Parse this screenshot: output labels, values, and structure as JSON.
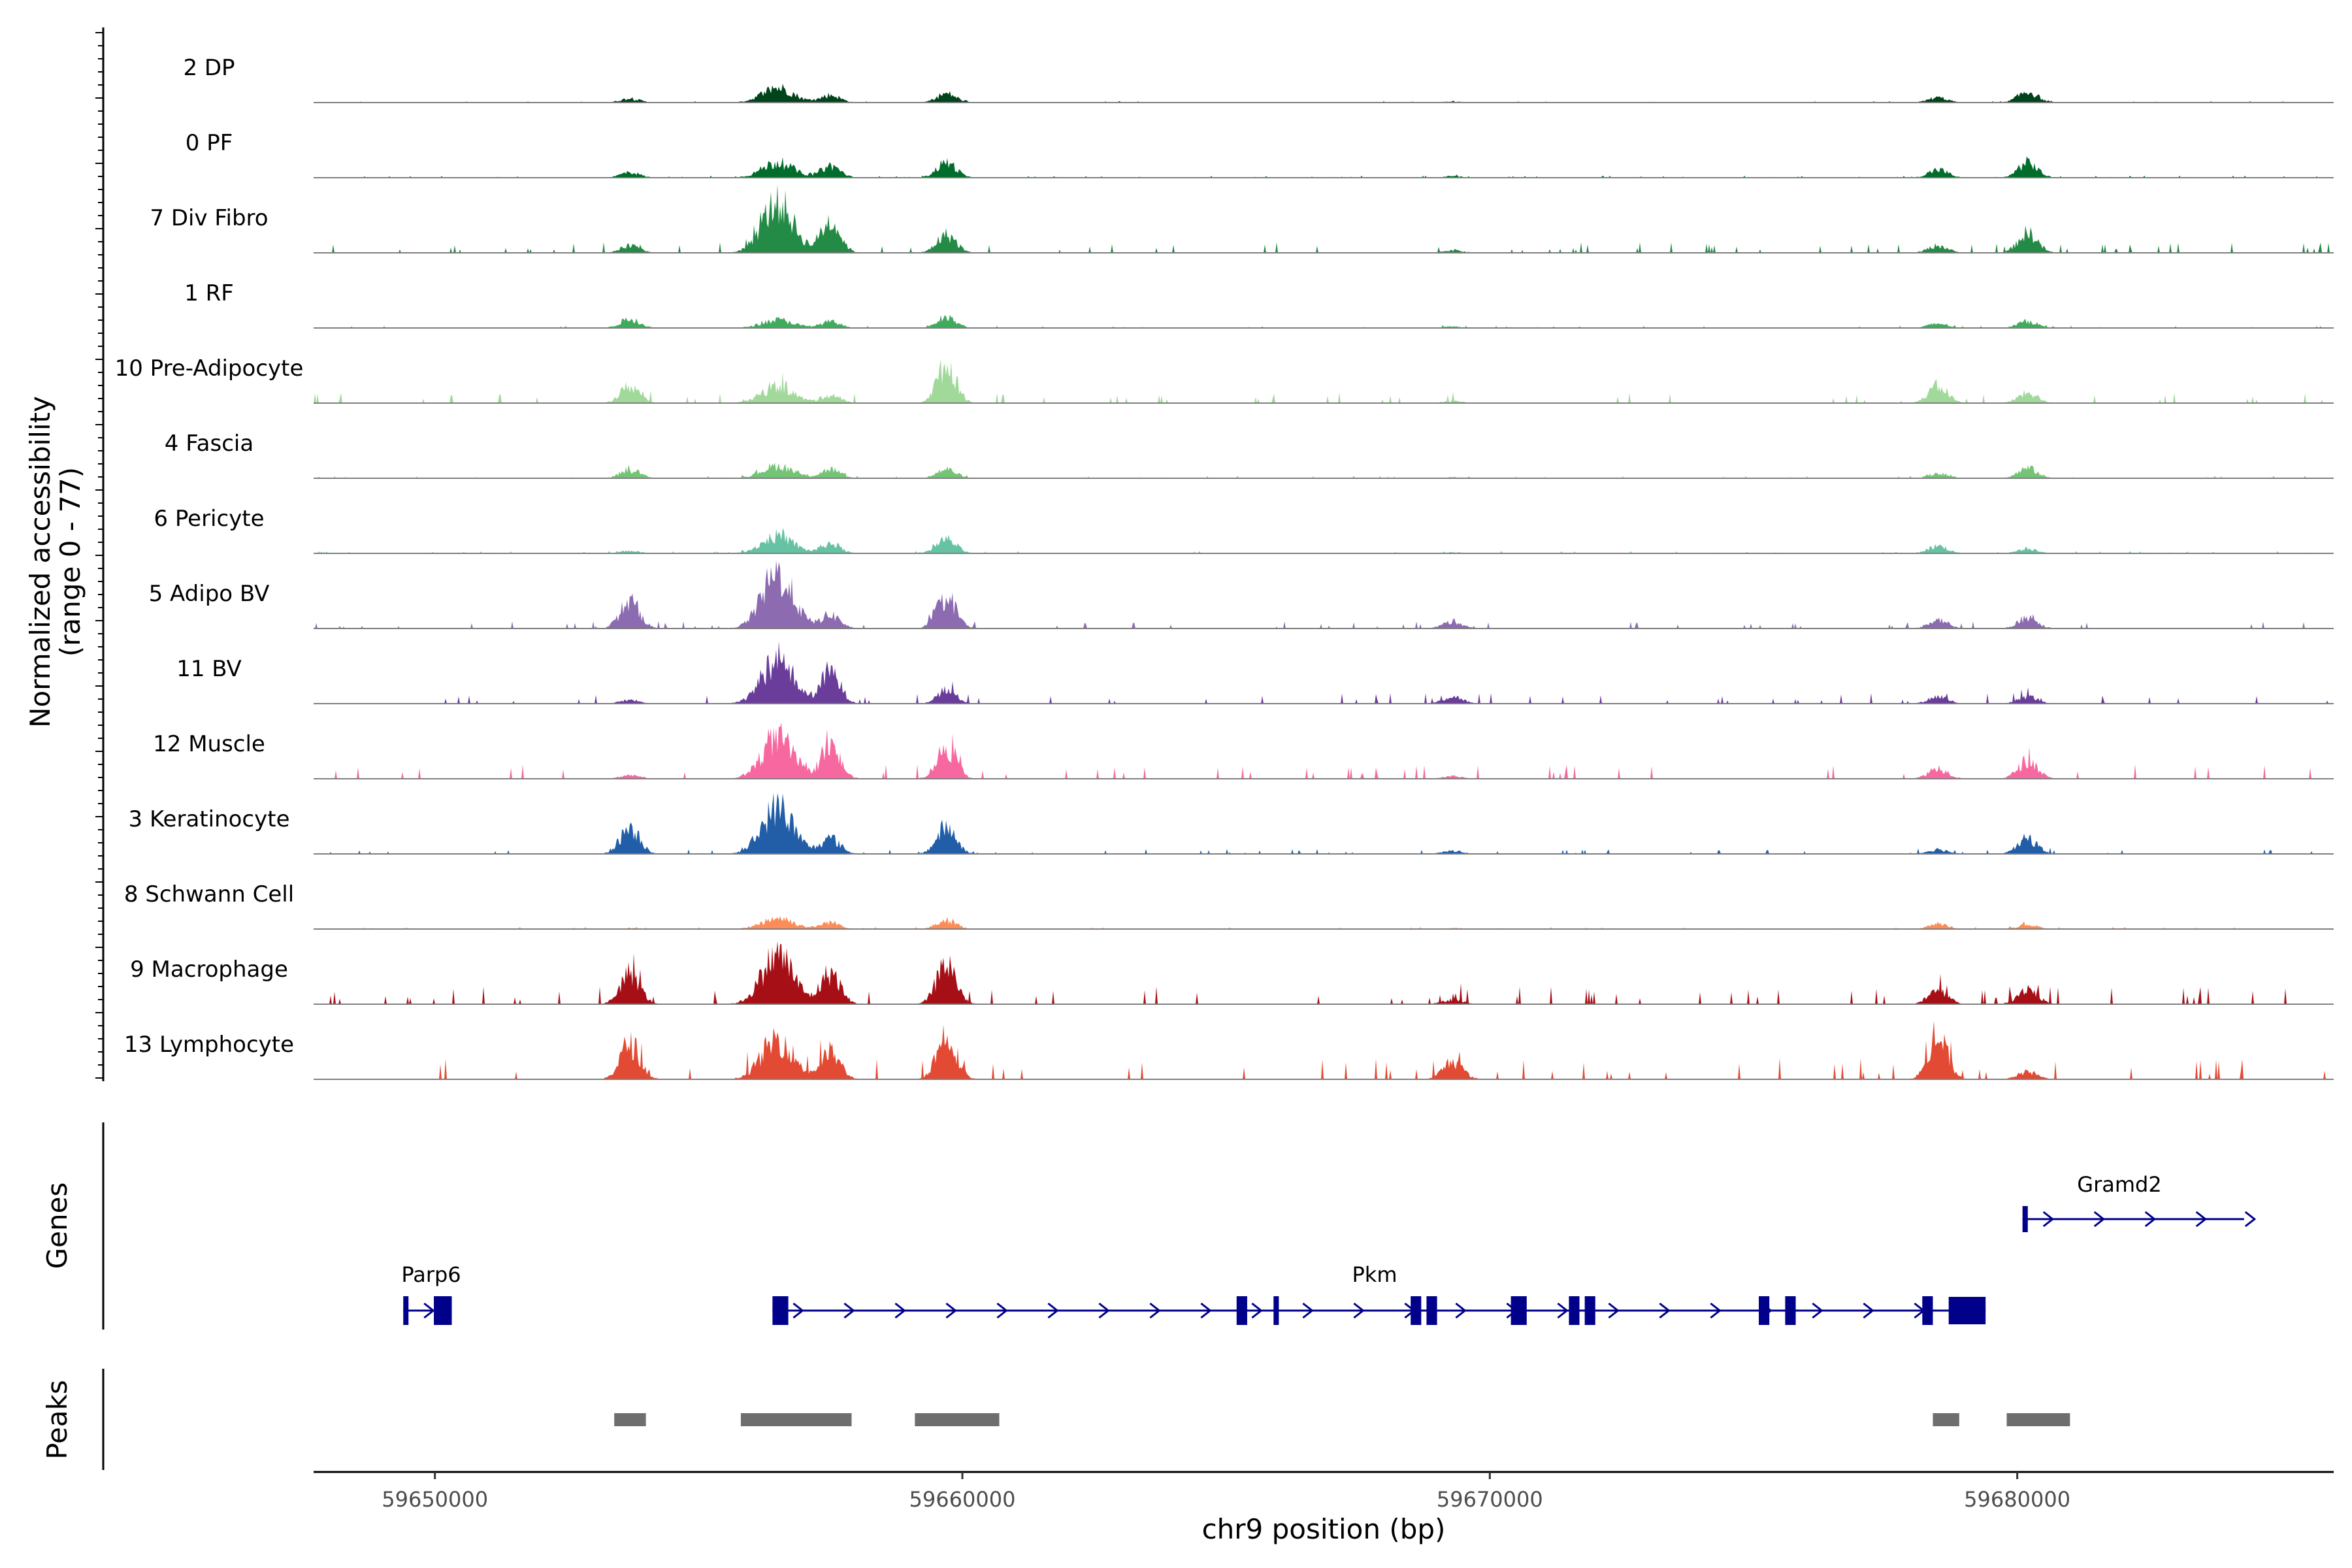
{
  "chart_data": {
    "type": "coverage",
    "title": "",
    "xlabel": "chr9 position (bp)",
    "ylabel_line1": "Normalized accessibility",
    "ylabel_line2": "(range 0 - 77)",
    "y_range": [
      0,
      77
    ],
    "xlim": [
      59647700,
      59686000
    ],
    "x_ticks": [
      59650000,
      59660000,
      59670000,
      59680000
    ],
    "x_tick_labels": [
      "59650000",
      "59660000",
      "59670000",
      "59680000"
    ],
    "peak_centers": [
      59653700,
      59656500,
      59657500,
      59659700,
      59669300,
      59678500,
      59680200
    ],
    "tracks": [
      {
        "name": "2 DP",
        "color": "#00441b",
        "scale": 0.55,
        "peaks": [
          8,
          30,
          15,
          18,
          2,
          10,
          22
        ],
        "noise": 0.4
      },
      {
        "name": "0 PF",
        "color": "#006d2c",
        "scale": 0.6,
        "peaks": [
          10,
          28,
          22,
          28,
          3,
          15,
          28
        ],
        "noise": 0.5
      },
      {
        "name": "7 Div Fibro",
        "color": "#238b45",
        "scale": 1.0,
        "peaks": [
          8,
          55,
          35,
          20,
          3,
          8,
          22
        ],
        "noise": 1.5
      },
      {
        "name": "1 RF",
        "color": "#41ab5d",
        "scale": 0.5,
        "peaks": [
          20,
          18,
          14,
          22,
          3,
          10,
          15
        ],
        "noise": 0.6
      },
      {
        "name": "10 Pre-Adipocyte",
        "color": "#a1d99b",
        "scale": 0.75,
        "peaks": [
          25,
          25,
          12,
          55,
          3,
          25,
          15
        ],
        "noise": 2.0
      },
      {
        "name": "4 Fascia",
        "color": "#74c476",
        "scale": 0.55,
        "peaks": [
          18,
          25,
          18,
          18,
          2,
          10,
          20
        ],
        "noise": 0.6
      },
      {
        "name": "6 Pericyte",
        "color": "#66c2a4",
        "scale": 0.55,
        "peaks": [
          5,
          35,
          20,
          28,
          2,
          15,
          10
        ],
        "noise": 0.6
      },
      {
        "name": "5 Adipo BV",
        "color": "#8c6bb1",
        "scale": 1.0,
        "peaks": [
          30,
          60,
          15,
          35,
          8,
          10,
          12
        ],
        "noise": 1.0
      },
      {
        "name": "11 BV",
        "color": "#6a3d9a",
        "scale": 1.0,
        "peaks": [
          4,
          50,
          35,
          15,
          8,
          8,
          8
        ],
        "noise": 1.5
      },
      {
        "name": "12 Muscle",
        "color": "#f768a1",
        "scale": 1.0,
        "peaks": [
          4,
          45,
          35,
          35,
          3,
          12,
          20
        ],
        "noise": 2.0
      },
      {
        "name": "3 Keratinocyte",
        "color": "#225ea8",
        "scale": 0.85,
        "peaks": [
          35,
          60,
          20,
          35,
          4,
          6,
          20
        ],
        "noise": 0.8
      },
      {
        "name": "8 Schwann Cell",
        "color": "#fc8d59",
        "scale": 0.5,
        "peaks": [
          2,
          25,
          15,
          20,
          2,
          12,
          10
        ],
        "noise": 0.6
      },
      {
        "name": "9 Macrophage",
        "color": "#a50f15",
        "scale": 1.0,
        "peaks": [
          35,
          55,
          35,
          45,
          5,
          15,
          18
        ],
        "noise": 2.5
      },
      {
        "name": "13 Lymphocyte",
        "color": "#e34a33",
        "scale": 1.0,
        "peaks": [
          40,
          45,
          30,
          50,
          20,
          45,
          8
        ],
        "noise": 3.0
      }
    ],
    "genes": [
      {
        "name": "Parp6",
        "start": 59649400,
        "end": 59650300,
        "row": 2,
        "exons": [
          [
            59649400,
            59649460
          ],
          [
            59649980,
            59650320
          ]
        ]
      },
      {
        "name": "Pkm",
        "start": 59656400,
        "end": 59679400,
        "row": 2,
        "exons": [
          [
            59656400,
            59656700
          ],
          [
            59665200,
            59665400
          ],
          [
            59665900,
            59666000
          ],
          [
            59668500,
            59668700
          ],
          [
            59668800,
            59669000
          ],
          [
            59670400,
            59670700
          ],
          [
            59671500,
            59671700
          ],
          [
            59671800,
            59672000
          ],
          [
            59675100,
            59675300
          ],
          [
            59675600,
            59675800
          ],
          [
            59678200,
            59678400
          ],
          [
            59678700,
            59679400
          ]
        ]
      },
      {
        "name": "Gramd2",
        "start": 59680100,
        "end": 59684300,
        "row": 1,
        "exons": [
          [
            59680100,
            59680200
          ]
        ]
      }
    ],
    "peak_regions": [
      [
        59653400,
        59654000
      ],
      [
        59655800,
        59657900
      ],
      [
        59659100,
        59660700
      ],
      [
        59678400,
        59678900
      ],
      [
        59679800,
        59681000
      ]
    ],
    "panel_labels": {
      "genes": "Genes",
      "peaks": "Peaks"
    }
  },
  "colors": {
    "gene": "#00008b",
    "peak": "#6e6e6e",
    "baseline": "#7f7f7f",
    "axis": "#000000"
  }
}
